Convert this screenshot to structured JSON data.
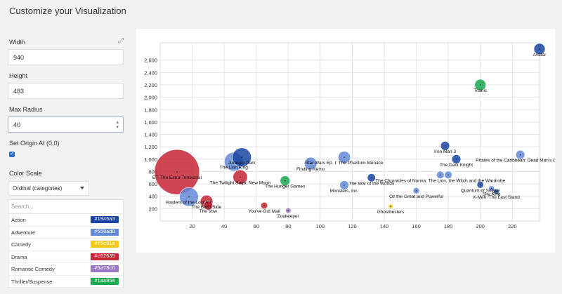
{
  "title": "Customize your Visualization",
  "fields": {
    "width_label": "Width",
    "width_value": "940",
    "height_label": "Height",
    "height_value": "483",
    "radius_label": "Max Radius",
    "radius_value": "40",
    "origin_label": "Set Origin At (0,0)",
    "color_label": "Color Scale",
    "color_value": "Ordinal (categories)",
    "search_placeholder": "Search..."
  },
  "categories": [
    {
      "name": "Action",
      "color": "#1945a3"
    },
    {
      "name": "Adventure",
      "color": "#658ad8"
    },
    {
      "name": "Comedy",
      "color": "#f5c91a"
    },
    {
      "name": "Drama",
      "color": "#c62635"
    },
    {
      "name": "Romantic Comedy",
      "color": "#9a78c6"
    },
    {
      "name": "Thriller/Suspense",
      "color": "#1aa850"
    }
  ],
  "chart_data": {
    "type": "scatter",
    "x_ticks": [
      20,
      40,
      60,
      80,
      100,
      120,
      140,
      160,
      180,
      200,
      220
    ],
    "y_ticks": [
      200,
      400,
      600,
      800,
      1000,
      1200,
      1400,
      1600,
      1800,
      2000,
      2200,
      2400,
      2600
    ],
    "xlim": [
      0,
      237
    ],
    "ylim": [
      0,
      2880
    ],
    "grid": true,
    "points": [
      {
        "label": "ET: The Extra-Terrestrial",
        "x": 10.5,
        "y": 792,
        "r": 1.0,
        "cat": 3
      },
      {
        "label": "Raiders of the Lost Ark",
        "x": 18,
        "y": 390,
        "r": 0.42,
        "cat": 1
      },
      {
        "label": "The Lion King",
        "x": 46,
        "y": 960,
        "r": 0.42,
        "cat": 1
      },
      {
        "label": "Jurassic Park",
        "x": 51,
        "y": 1030,
        "r": 0.42,
        "cat": 0
      },
      {
        "label": "The Twilight Saga: New Moon",
        "x": 50,
        "y": 710,
        "r": 0.32,
        "cat": 3
      },
      {
        "label": "The Blind Side",
        "x": 29,
        "y": 315,
        "r": 0.28,
        "cat": 3
      },
      {
        "label": "The Vow",
        "x": 30,
        "y": 250,
        "r": 0.2,
        "cat": 3
      },
      {
        "label": "You've Got Mail",
        "x": 65,
        "y": 250,
        "r": 0.15,
        "cat": 3
      },
      {
        "label": "The Hunger Games",
        "x": 78,
        "y": 650,
        "r": 0.22,
        "cat": 5
      },
      {
        "label": "Zookeeper",
        "x": 80,
        "y": 168,
        "r": 0.12,
        "cat": 4
      },
      {
        "label": "Finding Nemo",
        "x": 94,
        "y": 930,
        "r": 0.28,
        "cat": 1
      },
      {
        "label": "Star Wars Ep. I: The Phantom Menace",
        "x": 115,
        "y": 1030,
        "r": 0.27,
        "cat": 1
      },
      {
        "label": "Monsters, Inc.",
        "x": 115,
        "y": 580,
        "r": 0.2,
        "cat": 1
      },
      {
        "label": "The War of the Worlds",
        "x": 132,
        "y": 700,
        "r": 0.18,
        "cat": 0
      },
      {
        "label": "Ghostbusters",
        "x": 144,
        "y": 238,
        "r": 0.1,
        "cat": 2
      },
      {
        "label": "Oz the Great and Powerful",
        "x": 160,
        "y": 490,
        "r": 0.14,
        "cat": 1
      },
      {
        "label": "The Chronicles of Narnia: The Lion, the Witch and the Wardrobe",
        "x": 175,
        "y": 745,
        "r": 0.17,
        "cat": 1
      },
      {
        "label": "",
        "x": 180,
        "y": 745,
        "r": 0.17,
        "cat": 1
      },
      {
        "label": "Iron Man 3",
        "x": 178,
        "y": 1215,
        "r": 0.2,
        "cat": 0
      },
      {
        "label": "The Dark Knight",
        "x": 185,
        "y": 1000,
        "r": 0.2,
        "cat": 0
      },
      {
        "label": "Quantum of Solace",
        "x": 200,
        "y": 585,
        "r": 0.15,
        "cat": 0
      },
      {
        "label": "Sky King",
        "x": 207,
        "y": 525,
        "r": 0.13,
        "cat": 1
      },
      {
        "label": "X-Men: The Last Stand",
        "x": 210,
        "y": 475,
        "r": 0.12,
        "cat": 0
      },
      {
        "label": "Pirates of the Caribbean: Dead Man's Chest",
        "x": 225,
        "y": 1070,
        "r": 0.2,
        "cat": 1
      },
      {
        "label": "Titanic",
        "x": 200,
        "y": 2200,
        "r": 0.25,
        "cat": 5
      },
      {
        "label": "Avatar",
        "x": 237,
        "y": 2780,
        "r": 0.25,
        "cat": 0
      }
    ]
  }
}
